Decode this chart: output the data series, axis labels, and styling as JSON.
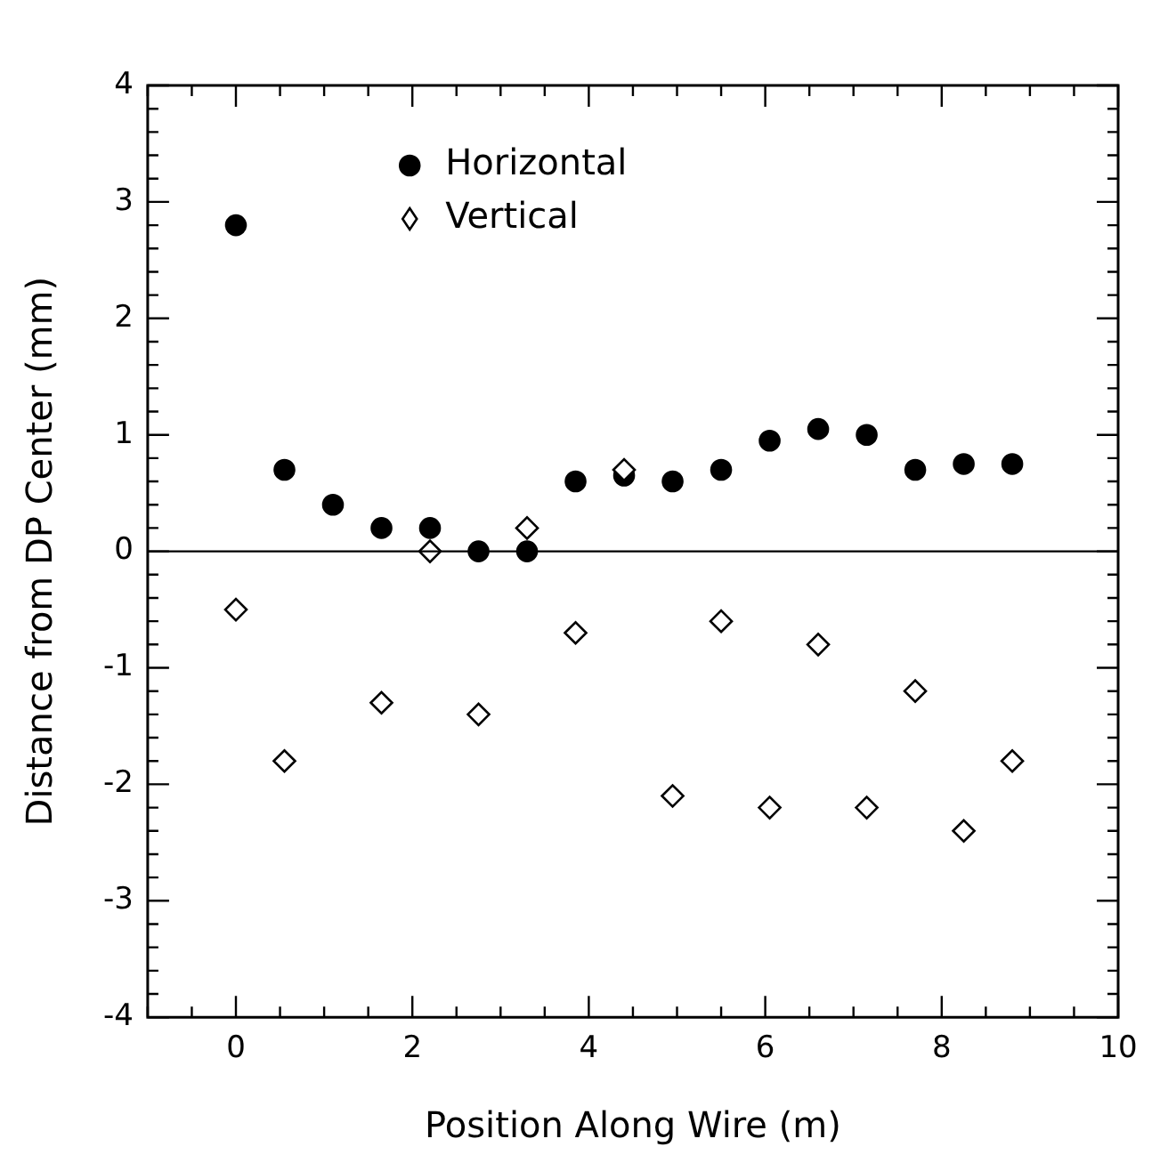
{
  "chart_data": {
    "type": "scatter",
    "xlabel": "Position Along Wire (m)",
    "ylabel": "Distance from DP Center (mm)",
    "x": [
      0,
      0.55,
      1.1,
      1.65,
      2.2,
      2.75,
      3.3,
      3.85,
      4.4,
      4.95,
      5.5,
      6.05,
      6.6,
      7.15,
      7.7,
      8.25,
      8.8
    ],
    "series": [
      {
        "name": "Horizontal",
        "color": "#000000",
        "marker": "circle",
        "values": [
          2.8,
          0.7,
          0.4,
          0.2,
          0.2,
          0,
          0,
          0.6,
          0.65,
          0.6,
          0.7,
          0.95,
          1.05,
          1.0,
          0.7,
          0.75,
          0.75
        ]
      },
      {
        "name": "Vertical",
        "color": "#000000",
        "marker": "diamond",
        "values": [
          -0.5,
          -1.8,
          null,
          -1.3,
          0,
          -1.4,
          0.2,
          -0.7,
          0.7,
          -2.1,
          -0.6,
          -2.2,
          -0.8,
          -2.2,
          -1.2,
          -2.4,
          -1.8
        ]
      }
    ],
    "xlim": [
      -1,
      10
    ],
    "xticks": [
      {
        "value": -1,
        "label": null
      },
      {
        "value": -0.5,
        "label": null
      },
      0,
      {
        "value": 0.5,
        "label": null
      },
      {
        "value": 1,
        "label": null
      },
      {
        "value": 1.5,
        "label": null
      },
      2,
      {
        "value": 2.5,
        "label": null
      },
      {
        "value": 3,
        "label": null
      },
      {
        "value": 3.5,
        "label": null
      },
      4,
      {
        "value": 4.5,
        "label": null
      },
      {
        "value": 5,
        "label": null
      },
      {
        "value": 5.5,
        "label": null
      },
      6,
      {
        "value": 6.5,
        "label": null
      },
      {
        "value": 7,
        "label": null
      },
      {
        "value": 7.5,
        "label": null
      },
      8,
      {
        "value": 8.5,
        "label": null
      },
      {
        "value": 9,
        "label": null
      },
      {
        "value": 9.5,
        "label": null
      },
      10
    ],
    "ylim": [
      -4,
      4
    ],
    "yticks": [
      -4,
      {
        "value": -3.8,
        "label": null
      },
      {
        "value": -3.6,
        "label": null
      },
      {
        "value": -3.4,
        "label": null
      },
      {
        "value": -3.2,
        "label": null
      },
      -3,
      {
        "value": -2.8,
        "label": null
      },
      {
        "value": -2.6,
        "label": null
      },
      {
        "value": -2.4,
        "label": null
      },
      {
        "value": -2.2,
        "label": null
      },
      -2,
      {
        "value": -1.8,
        "label": null
      },
      {
        "value": -1.6,
        "label": null
      },
      {
        "value": -1.4,
        "label": null
      },
      {
        "value": -1.2,
        "label": null
      },
      -1,
      {
        "value": -0.8,
        "label": null
      },
      {
        "value": -0.6,
        "label": null
      },
      {
        "value": -0.4,
        "label": null
      },
      {
        "value": -0.2,
        "label": null
      },
      0,
      {
        "value": 0.2,
        "label": null
      },
      {
        "value": 0.4,
        "label": null
      },
      {
        "value": 0.6,
        "label": null
      },
      {
        "value": 0.8,
        "label": null
      },
      1,
      {
        "value": 1.2,
        "label": null
      },
      {
        "value": 1.4,
        "label": null
      },
      {
        "value": 1.6,
        "label": null
      },
      {
        "value": 1.8,
        "label": null
      },
      2,
      {
        "value": 2.2,
        "label": null
      },
      {
        "value": 2.4,
        "label": null
      },
      {
        "value": 2.6,
        "label": null
      },
      {
        "value": 2.8,
        "label": null
      },
      3,
      {
        "value": 3.2,
        "label": null
      },
      {
        "value": 3.4,
        "label": null
      },
      {
        "value": 3.6,
        "label": null
      },
      {
        "value": 3.8,
        "label": null
      },
      4
    ],
    "ref_lines": [
      {
        "axis": "y",
        "value": 0,
        "color": "#000000"
      }
    ],
    "grid": false,
    "legend": "top"
  }
}
